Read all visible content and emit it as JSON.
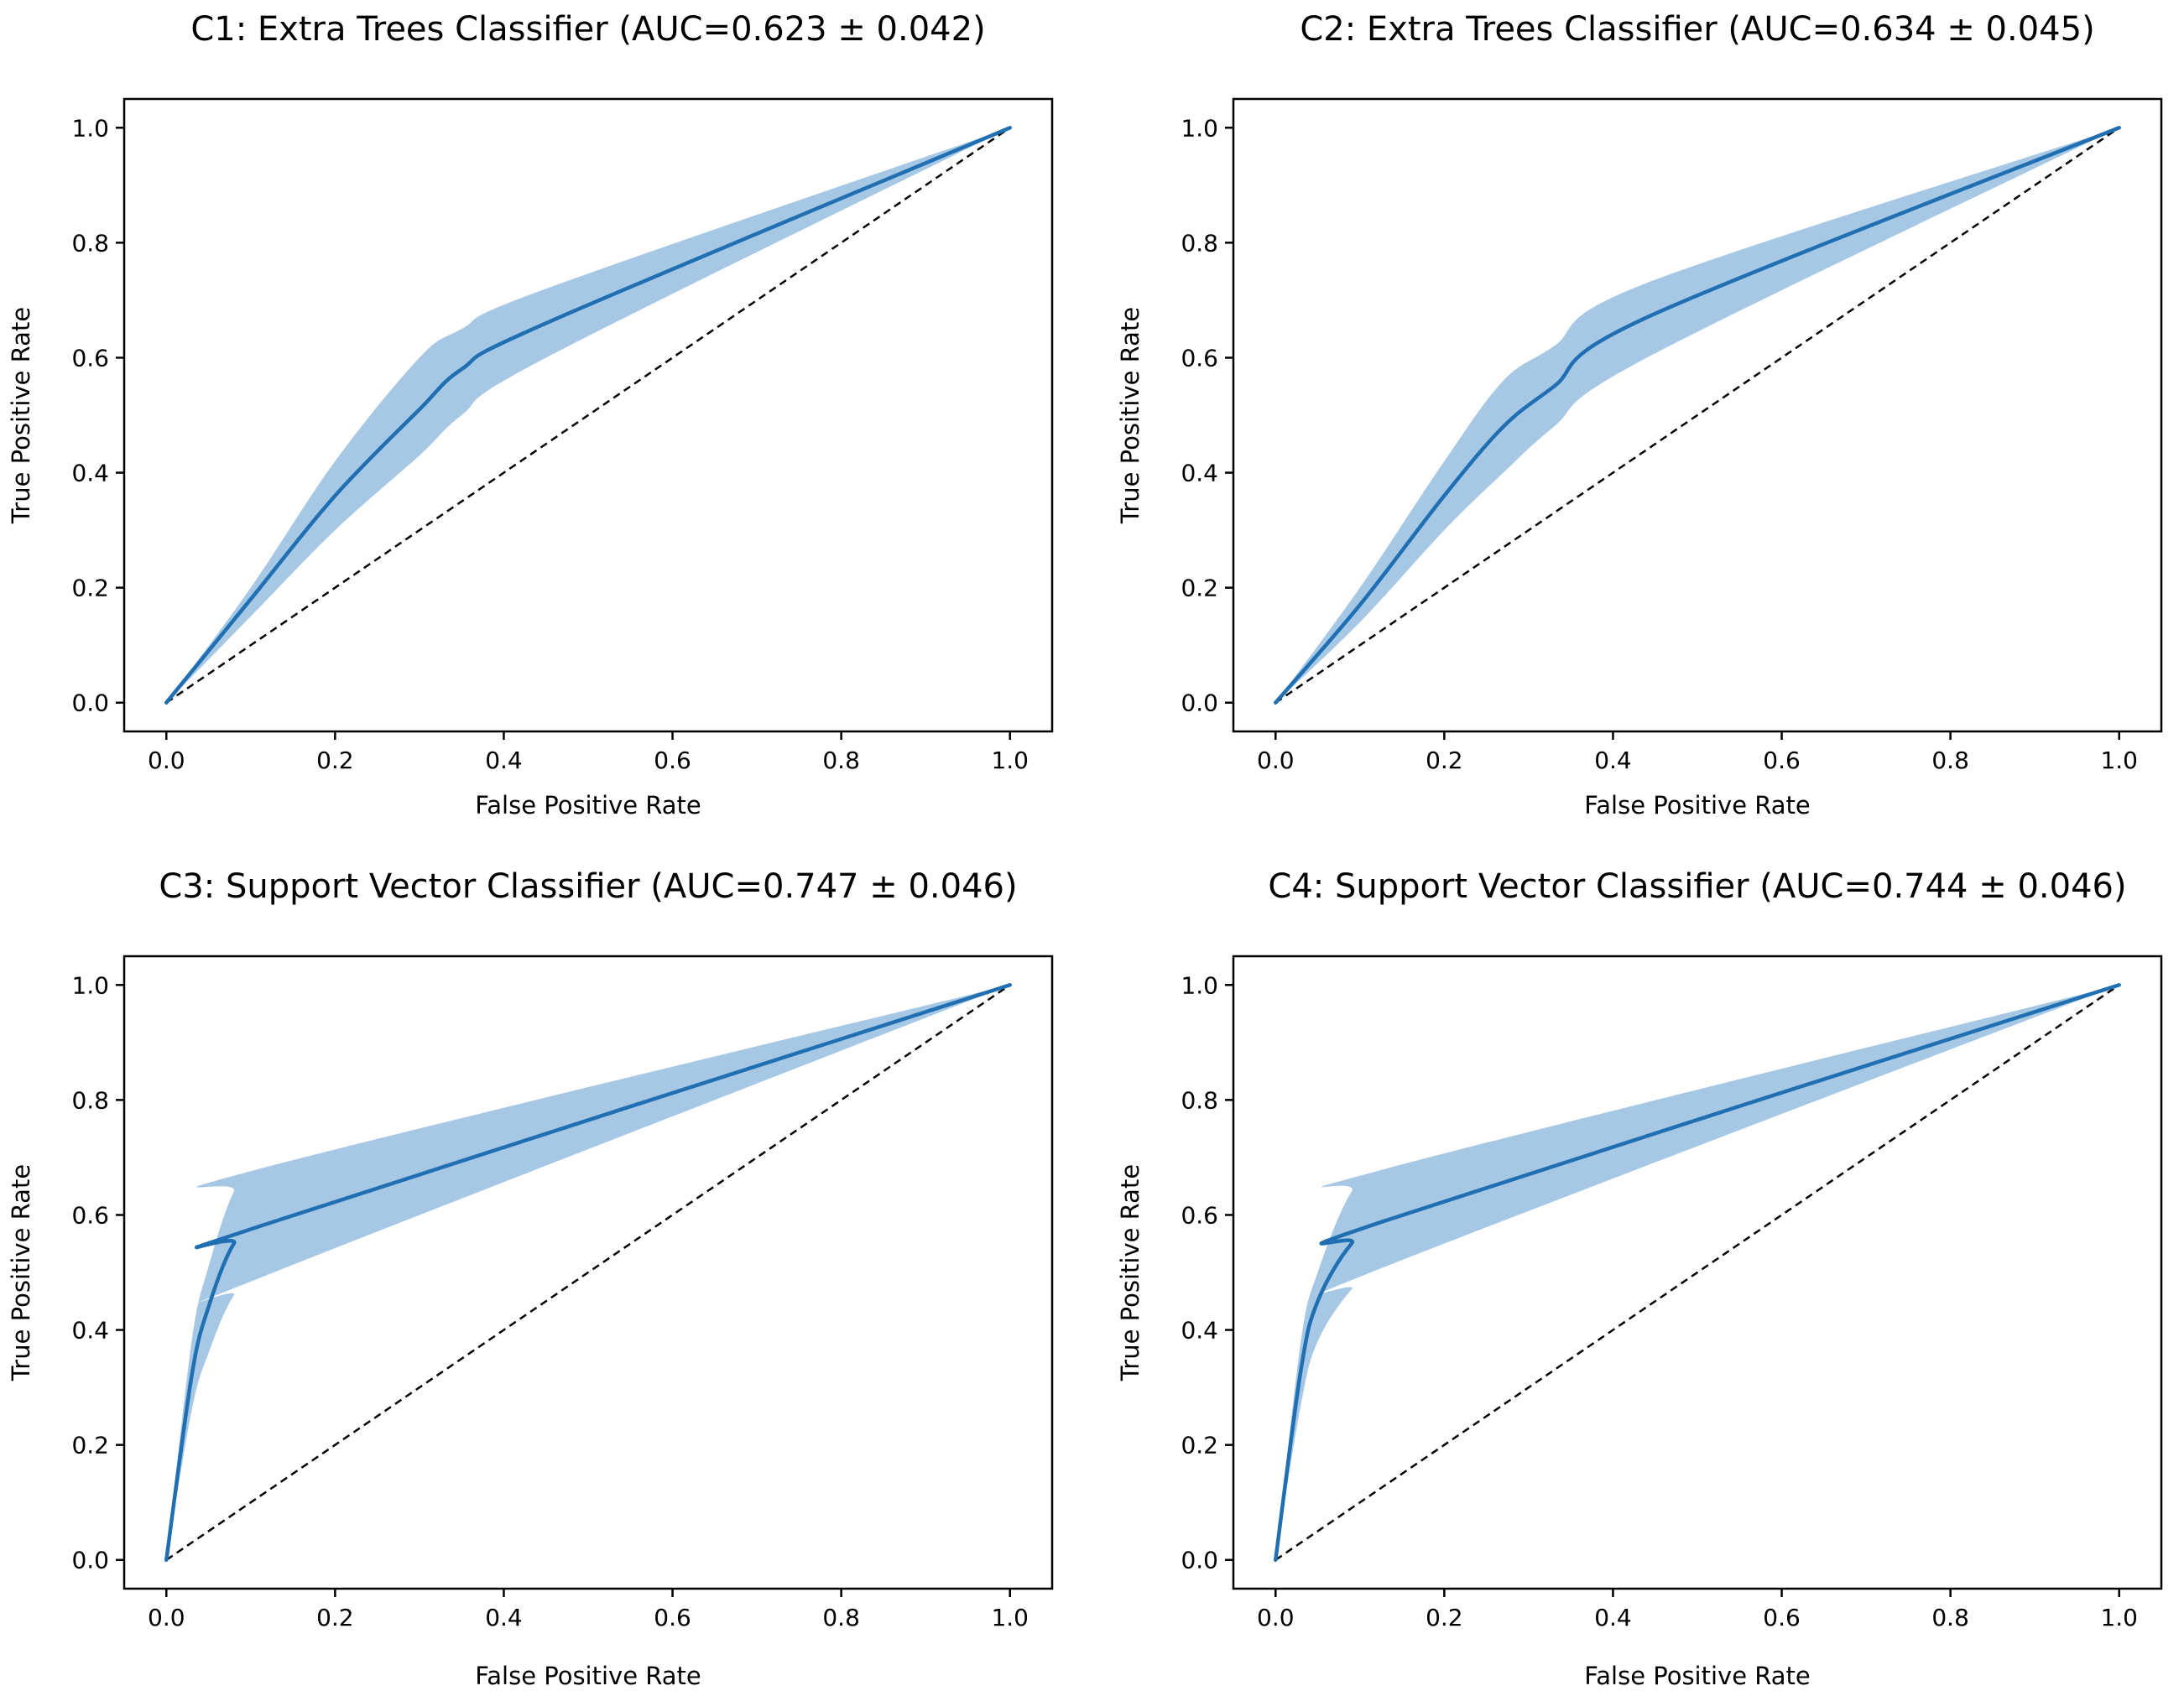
{
  "chart_data": [
    {
      "type": "area",
      "title": "C1: Extra Trees Classifier (AUC=0.623 ± 0.042)",
      "xlabel": "False Positive Rate",
      "ylabel": "True Positive Rate",
      "xlim": [
        -0.05,
        1.05
      ],
      "ylim": [
        -0.05,
        1.05
      ],
      "xticks": [
        "0.0",
        "0.2",
        "0.4",
        "0.6",
        "0.8",
        "1.0"
      ],
      "yticks": [
        "0.0",
        "0.2",
        "0.4",
        "0.6",
        "0.8",
        "1.0"
      ],
      "grid": false,
      "colors": {
        "line": "#1f6fb2",
        "band": "#a6c8e4",
        "chance": "#000000"
      },
      "series": [
        {
          "role": "mean",
          "x": [
            0,
            0.1,
            0.2,
            0.3,
            0.35,
            0.45,
            1.0
          ],
          "y": [
            0,
            0.18,
            0.36,
            0.51,
            0.58,
            0.66,
            1.0
          ]
        },
        {
          "role": "upper",
          "x": [
            0,
            0.1,
            0.2,
            0.3,
            0.35,
            0.45,
            1.0
          ],
          "y": [
            0,
            0.2,
            0.42,
            0.6,
            0.65,
            0.72,
            1.0
          ]
        },
        {
          "role": "lower",
          "x": [
            0,
            0.1,
            0.2,
            0.3,
            0.35,
            0.45,
            1.0
          ],
          "y": [
            0,
            0.15,
            0.3,
            0.43,
            0.5,
            0.6,
            1.0
          ]
        },
        {
          "role": "chance",
          "x": [
            0,
            1
          ],
          "y": [
            0,
            1
          ]
        }
      ]
    },
    {
      "type": "area",
      "title": "C2: Extra Trees Classifier (AUC=0.634 ± 0.045)",
      "xlabel": "False Positive Rate",
      "ylabel": "True Positive Rate",
      "xlim": [
        -0.05,
        1.05
      ],
      "ylim": [
        -0.05,
        1.05
      ],
      "xticks": [
        "0.0",
        "0.2",
        "0.4",
        "0.6",
        "0.8",
        "1.0"
      ],
      "yticks": [
        "0.0",
        "0.2",
        "0.4",
        "0.6",
        "0.8",
        "1.0"
      ],
      "grid": false,
      "colors": {
        "line": "#1f6fb2",
        "band": "#a6c8e4",
        "chance": "#000000"
      },
      "series": [
        {
          "role": "mean",
          "x": [
            0,
            0.1,
            0.2,
            0.27,
            0.33,
            0.44,
            1.0
          ],
          "y": [
            0,
            0.17,
            0.36,
            0.48,
            0.55,
            0.67,
            1.0
          ]
        },
        {
          "role": "upper",
          "x": [
            0,
            0.1,
            0.2,
            0.27,
            0.33,
            0.44,
            1.0
          ],
          "y": [
            0,
            0.2,
            0.42,
            0.56,
            0.62,
            0.73,
            1.0
          ]
        },
        {
          "role": "lower",
          "x": [
            0,
            0.1,
            0.2,
            0.27,
            0.33,
            0.44,
            1.0
          ],
          "y": [
            0,
            0.14,
            0.3,
            0.4,
            0.48,
            0.6,
            1.0
          ]
        },
        {
          "role": "chance",
          "x": [
            0,
            1
          ],
          "y": [
            0,
            1
          ]
        }
      ]
    },
    {
      "type": "area",
      "title": "C3: Support Vector Classifier (AUC=0.747 ± 0.046)",
      "xlabel": "False Positive Rate",
      "ylabel": "True Positive Rate",
      "xlim": [
        -0.05,
        1.05
      ],
      "ylim": [
        -0.05,
        1.05
      ],
      "xticks": [
        "0.0",
        "0.2",
        "0.4",
        "0.6",
        "0.8",
        "1.0"
      ],
      "yticks": [
        "0.0",
        "0.2",
        "0.4",
        "0.6",
        "0.8",
        "1.0"
      ],
      "grid": false,
      "colors": {
        "line": "#1f6fb2",
        "band": "#a6c8e4",
        "chance": "#000000"
      },
      "series": [
        {
          "role": "mean",
          "x": [
            0,
            0.03,
            0.05,
            0.08,
            0.11,
            1.0
          ],
          "y": [
            0,
            0.32,
            0.44,
            0.55,
            0.58,
            1.0
          ]
        },
        {
          "role": "upper",
          "x": [
            0,
            0.03,
            0.05,
            0.08,
            0.11,
            1.0
          ],
          "y": [
            0,
            0.38,
            0.51,
            0.64,
            0.68,
            1.0
          ]
        },
        {
          "role": "lower",
          "x": [
            0,
            0.03,
            0.05,
            0.08,
            0.11,
            1.0
          ],
          "y": [
            0,
            0.26,
            0.36,
            0.46,
            0.49,
            1.0
          ]
        },
        {
          "role": "chance",
          "x": [
            0,
            1
          ],
          "y": [
            0,
            1
          ]
        }
      ]
    },
    {
      "type": "area",
      "title": "C4: Support Vector Classifier (AUC=0.744 ± 0.046)",
      "xlabel": "False Positive Rate",
      "ylabel": "True Positive Rate",
      "xlim": [
        -0.05,
        1.05
      ],
      "ylim": [
        -0.05,
        1.05
      ],
      "xticks": [
        "0.0",
        "0.2",
        "0.4",
        "0.6",
        "0.8",
        "1.0"
      ],
      "yticks": [
        "0.0",
        "0.2",
        "0.4",
        "0.6",
        "0.8",
        "1.0"
      ],
      "grid": false,
      "colors": {
        "line": "#1f6fb2",
        "band": "#a6c8e4",
        "chance": "#000000"
      },
      "series": [
        {
          "role": "mean",
          "x": [
            0,
            0.03,
            0.05,
            0.09,
            0.13,
            1.0
          ],
          "y": [
            0,
            0.33,
            0.45,
            0.55,
            0.59,
            1.0
          ]
        },
        {
          "role": "upper",
          "x": [
            0,
            0.03,
            0.05,
            0.09,
            0.13,
            1.0
          ],
          "y": [
            0,
            0.38,
            0.5,
            0.64,
            0.68,
            1.0
          ]
        },
        {
          "role": "lower",
          "x": [
            0,
            0.03,
            0.05,
            0.09,
            0.13,
            1.0
          ],
          "y": [
            0,
            0.27,
            0.38,
            0.47,
            0.51,
            1.0
          ]
        },
        {
          "role": "chance",
          "x": [
            0,
            1
          ],
          "y": [
            0,
            1
          ]
        }
      ]
    }
  ]
}
